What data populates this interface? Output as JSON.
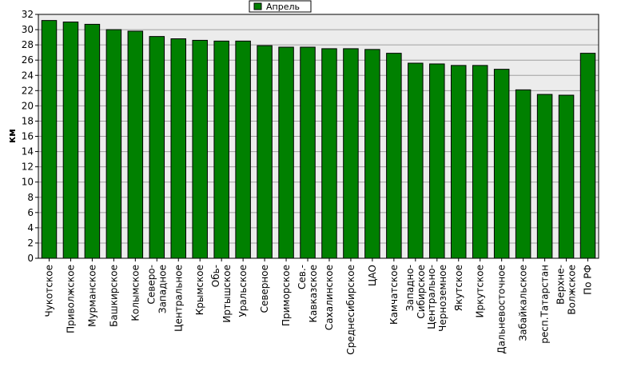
{
  "chart_data": {
    "type": "bar",
    "categories": [
      "Чукотское",
      "Приволжское",
      "Мурманское",
      "Башкирское",
      "Колымское",
      "Северо-Западное",
      "Центральное",
      "Крымское",
      "Обь-Иртышское",
      "Уральское",
      "Северное",
      "Приморское",
      "Сев.-Кавказское",
      "Сахалинское",
      "Среднесибирское",
      "ЦАО",
      "Камчатское",
      "Западно-Сибирское",
      "Центрально-Черноземное",
      "Якутское",
      "Иркутское",
      "Дальневосточное",
      "Забайкальское",
      "респ.Татарстан",
      "Верхне-Волжское",
      "По РФ"
    ],
    "category_lines": [
      [
        "Чукотское"
      ],
      [
        "Приволжское"
      ],
      [
        "Мурманское"
      ],
      [
        "Башкирское"
      ],
      [
        "Колымское"
      ],
      [
        "Северо-",
        "Западное"
      ],
      [
        "Центральное"
      ],
      [
        "Крымское"
      ],
      [
        "Обь-",
        "Иртышское"
      ],
      [
        "Уральское"
      ],
      [
        "Северное"
      ],
      [
        "Приморское"
      ],
      [
        "Сев.-",
        "Кавказское"
      ],
      [
        "Сахалинское"
      ],
      [
        "Среднесибирское"
      ],
      [
        "ЦАО"
      ],
      [
        "Камчатское"
      ],
      [
        "Западно-",
        "Сибирское"
      ],
      [
        "Центрально-",
        "Черноземное"
      ],
      [
        "Якутское"
      ],
      [
        "Иркутское"
      ],
      [
        "Дальневосточное"
      ],
      [
        "Забайкальское"
      ],
      [
        "респ.Татарстан"
      ],
      [
        "Верхне-",
        "Волжское"
      ],
      [
        "По РФ"
      ]
    ],
    "series": [
      {
        "name": "Апрель",
        "values": [
          31.2,
          31.0,
          30.7,
          30.0,
          29.8,
          29.1,
          28.8,
          28.6,
          28.5,
          28.5,
          27.9,
          27.7,
          27.7,
          27.5,
          27.5,
          27.4,
          26.9,
          25.6,
          25.5,
          25.3,
          25.3,
          24.8,
          22.1,
          21.5,
          21.4,
          26.9
        ]
      }
    ],
    "ylabel": "км",
    "xlabel": "",
    "ylim": [
      0,
      32
    ],
    "yticks": [
      0,
      2,
      4,
      6,
      8,
      10,
      12,
      14,
      16,
      18,
      20,
      22,
      24,
      26,
      28,
      30,
      32
    ],
    "grid": true,
    "legend": "top-center",
    "colors": {
      "bar": "#008000",
      "bar_border": "#000000",
      "plot_bg": "#ececec",
      "grid": "#a0a0a0"
    }
  }
}
